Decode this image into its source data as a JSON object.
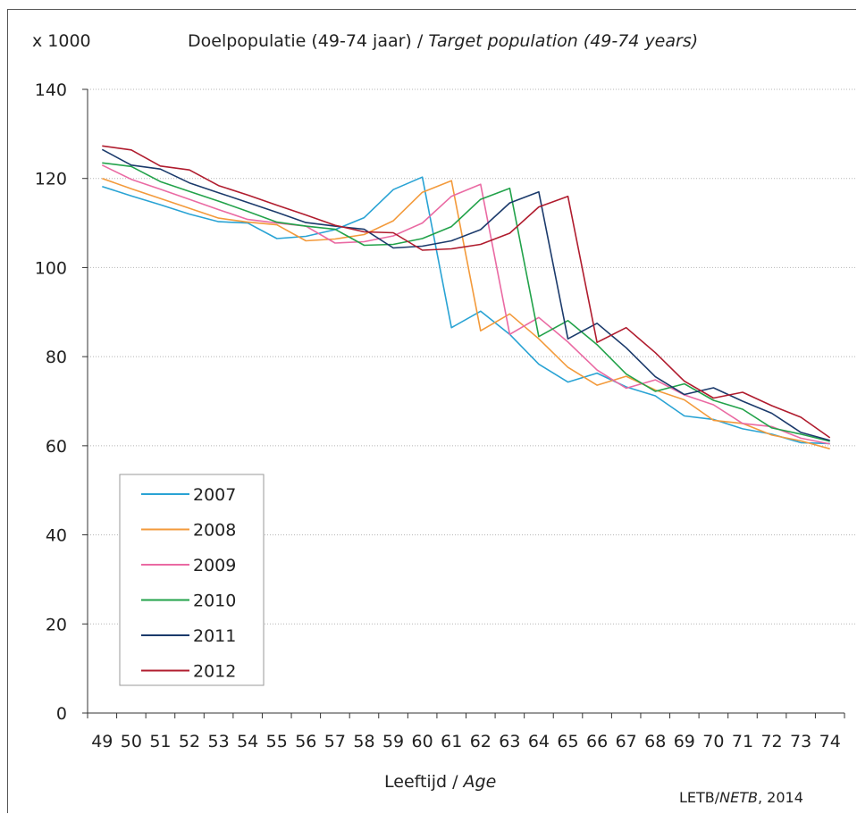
{
  "colors": {
    "2007": "#29a3d4",
    "2008": "#f39a3b",
    "2009": "#ea6aa3",
    "2010": "#22a24a",
    "2011": "#1b3a6b",
    "2012": "#b01c2e",
    "grid": "#b5b5b5",
    "axis": "#333333"
  },
  "chart_data": {
    "type": "line",
    "unit_label": "x 1000",
    "title": "Doelpopulatie (49-74 jaar)",
    "title_sep": " / ",
    "title_en": "Target population (49-74 years)",
    "xlabel": "Leeftijd",
    "xlabel_sep": " / ",
    "xlabel_en": "Age",
    "source": "LETB/",
    "source_it": "NETB",
    "source_year": ", 2014",
    "ylim": [
      0,
      140
    ],
    "yticks": [
      "0",
      "20",
      "40",
      "60",
      "80",
      "100",
      "120",
      "140"
    ],
    "grid": true,
    "legend_position": "bottom-left",
    "x": [
      "49",
      "50",
      "51",
      "52",
      "53",
      "54",
      "55",
      "56",
      "57",
      "58",
      "59",
      "60",
      "61",
      "62",
      "63",
      "64",
      "65",
      "66",
      "67",
      "68",
      "69",
      "70",
      "71",
      "72",
      "73",
      "74"
    ],
    "series": [
      {
        "name": "2007",
        "values": [
          118.2,
          116.1,
          114.1,
          112.0,
          110.3,
          110.0,
          106.5,
          107.0,
          108.5,
          111.2,
          117.5,
          120.3,
          86.5,
          90.2,
          85.0,
          78.3,
          74.3,
          76.3,
          73.2,
          71.2,
          66.7,
          65.9,
          63.8,
          62.6,
          60.7,
          60.5
        ]
      },
      {
        "name": "2008",
        "values": [
          120.0,
          117.7,
          115.5,
          113.3,
          111.1,
          110.2,
          109.6,
          106.0,
          106.4,
          107.4,
          110.5,
          116.9,
          119.5,
          85.8,
          89.6,
          84.0,
          77.6,
          73.6,
          75.6,
          72.5,
          70.3,
          65.7,
          65.0,
          62.4,
          61.1,
          59.3
        ]
      },
      {
        "name": "2009",
        "values": [
          123.0,
          119.8,
          117.6,
          115.3,
          113.0,
          110.8,
          110.0,
          109.3,
          105.5,
          105.8,
          107.1,
          110.0,
          116.0,
          118.7,
          85.0,
          88.8,
          83.3,
          77.0,
          72.9,
          74.8,
          71.4,
          69.2,
          65.0,
          64.3,
          61.7,
          60.4
        ]
      },
      {
        "name": "2010",
        "values": [
          123.5,
          122.7,
          119.3,
          117.1,
          114.9,
          112.6,
          110.2,
          109.3,
          108.6,
          105.0,
          105.2,
          106.5,
          109.2,
          115.3,
          117.8,
          84.5,
          88.1,
          82.7,
          76.1,
          72.2,
          73.9,
          70.2,
          68.2,
          64.0,
          62.6,
          61.0
        ]
      },
      {
        "name": "2011",
        "values": [
          126.5,
          123.0,
          122.1,
          119.0,
          116.8,
          114.6,
          112.4,
          110.1,
          109.3,
          108.6,
          104.4,
          104.8,
          106.0,
          108.5,
          114.5,
          117.0,
          84.0,
          87.5,
          82.0,
          75.5,
          71.5,
          73.0,
          70.0,
          67.3,
          63.0,
          61.2
        ]
      },
      {
        "name": "2012",
        "values": [
          127.3,
          126.4,
          122.8,
          121.9,
          118.4,
          116.3,
          114.0,
          111.8,
          109.5,
          108.0,
          107.8,
          103.9,
          104.2,
          105.2,
          107.7,
          113.6,
          116.0,
          83.2,
          86.5,
          80.9,
          74.5,
          70.7,
          72.0,
          69.0,
          66.4,
          61.8
        ]
      }
    ]
  }
}
